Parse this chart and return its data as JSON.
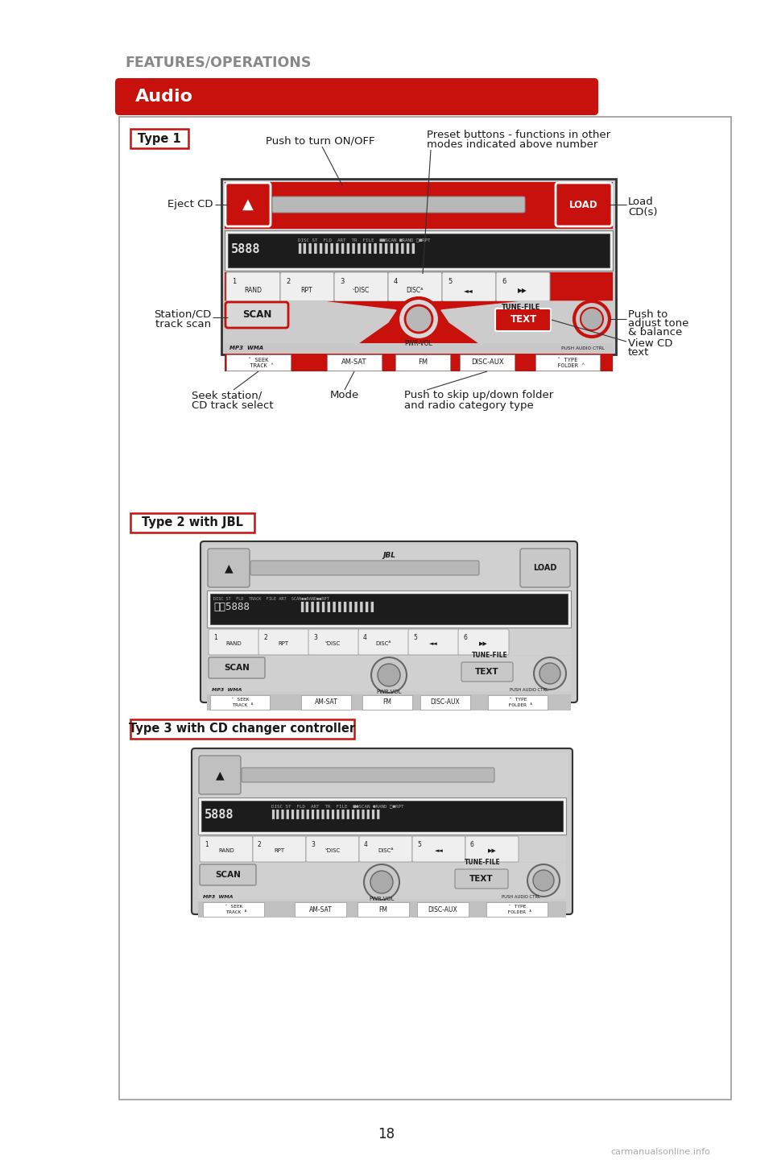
{
  "page_bg": "#ffffff",
  "page_number": "18",
  "header_text": "FEATURES/OPERATIONS",
  "section_title": "Audio",
  "section_bg": "#c8100c",
  "red": "#c8100c",
  "dark": "#1a1a1a",
  "gray_unit": "#d8d8d8",
  "gray_mid": "#aaaaaa",
  "type1_label": "Type 1",
  "type2_label": "Type 2 with JBL",
  "type3_label": "Type 3 with CD changer controller",
  "ann": {
    "eject_cd": "Eject CD",
    "push_on_off": "Push to turn ON/OFF",
    "preset_line1": "Preset buttons - functions in other",
    "preset_line2": "modes indicated above number",
    "load_cds_line1": "Load",
    "load_cds_line2": "CD(s)",
    "station_cd_line1": "Station/CD",
    "station_cd_line2": "track scan",
    "push_adj_line1": "Push to",
    "push_adj_line2": "adjust tone",
    "push_adj_line3": "& balance",
    "view_cd_line1": "View CD",
    "view_cd_line2": "text",
    "seek_line1": "Seek station/",
    "seek_line2": "CD track select",
    "mode": "Mode",
    "push_skip_line1": "Push to skip up/down folder",
    "push_skip_line2": "and radio category type"
  }
}
